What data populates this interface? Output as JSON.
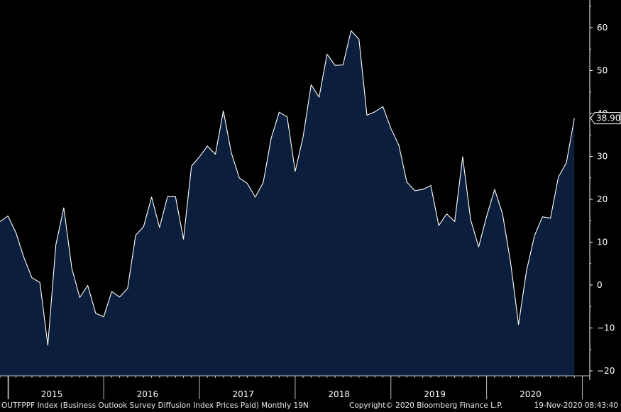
{
  "chart_data": {
    "type": "area",
    "title": "",
    "xlabel": "",
    "ylabel": "",
    "ylim": [
      -21,
      66
    ],
    "yticks": [
      60,
      50,
      40,
      30,
      20,
      10,
      0,
      -10,
      -20
    ],
    "x_labels": [
      "2015",
      "2016",
      "2017",
      "2018",
      "2019",
      "2020"
    ],
    "x_start": "2014-12",
    "values": [
      14.8,
      16.1,
      12.2,
      6.4,
      1.7,
      0.6,
      -14.0,
      9.4,
      18.0,
      3.9,
      -2.9,
      -0.1,
      -6.6,
      -7.4,
      -1.5,
      -2.8,
      -0.8,
      11.6,
      13.6,
      20.5,
      13.4,
      20.6,
      20.6,
      10.7,
      27.7,
      29.9,
      32.4,
      30.5,
      40.6,
      30.8,
      25.0,
      23.7,
      20.5,
      23.9,
      34.3,
      40.3,
      39.2,
      26.5,
      34.6,
      46.7,
      43.8,
      53.8,
      51.2,
      51.3,
      59.3,
      57.3,
      39.6,
      40.4,
      41.6,
      36.5,
      32.6,
      24.0,
      22.0,
      22.3,
      23.2,
      13.9,
      16.6,
      14.8,
      29.9,
      15.2,
      8.9,
      16.0,
      22.3,
      16.6,
      5.3,
      -9.2,
      3.3,
      11.5,
      15.9,
      15.6,
      25.2,
      28.5,
      38.9
    ],
    "last_value_label": "38.90",
    "colors": {
      "background": "#000000",
      "fill": "#0b1f3c",
      "line": "#ffffff",
      "axis": "#ffffff"
    }
  },
  "footer": {
    "left": "OUTFPPF Index (Business Outlook Survey Diffusion Index Prices Paid)  Monthly 19N",
    "middle": "Copyright© 2020 Bloomberg Finance L.P.",
    "right": "19-Nov-2020 08:43:40"
  }
}
